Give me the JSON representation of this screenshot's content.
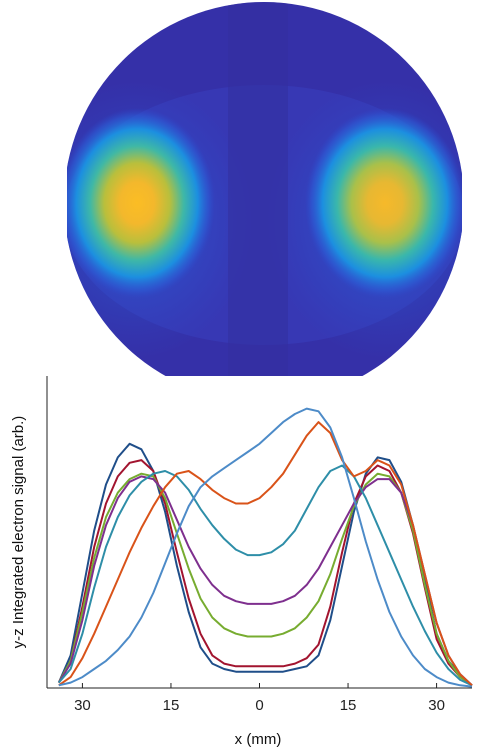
{
  "chart_data": [
    {
      "type": "heatmap",
      "shape": "circular",
      "colormap": [
        "#3a2fb0",
        "#2a64e0",
        "#1aa6d8",
        "#5cc08a",
        "#c4be3c",
        "#fbbd24"
      ],
      "hotspots": [
        {
          "side": "left",
          "peak_level": 1.0
        },
        {
          "side": "right",
          "peak_level": 0.95
        }
      ]
    },
    {
      "type": "line",
      "title": "",
      "xlabel": "x (mm)",
      "ylabel": "y-z Integrated electron signal (arb.)",
      "xlim": [
        -36,
        36
      ],
      "ylim": [
        0,
        1.15
      ],
      "x_ticks": [
        -30,
        -15,
        0,
        15,
        30
      ],
      "x_tick_labels": [
        "30",
        "15",
        "0",
        "15",
        "30"
      ],
      "grid": false,
      "series": [
        {
          "color": "#1f4e89",
          "x": [
            -34,
            -32,
            -30,
            -28,
            -26,
            -24,
            -22,
            -20,
            -18,
            -16,
            -14,
            -12,
            -10,
            -8,
            -6,
            -4,
            -2,
            0,
            2,
            4,
            6,
            8,
            10,
            12,
            14,
            16,
            18,
            20,
            22,
            24,
            26,
            28,
            30,
            32,
            34,
            36
          ],
          "y": [
            0.02,
            0.12,
            0.35,
            0.58,
            0.75,
            0.85,
            0.9,
            0.88,
            0.8,
            0.65,
            0.45,
            0.28,
            0.15,
            0.09,
            0.07,
            0.06,
            0.06,
            0.06,
            0.06,
            0.06,
            0.07,
            0.08,
            0.12,
            0.25,
            0.45,
            0.65,
            0.79,
            0.85,
            0.84,
            0.76,
            0.6,
            0.4,
            0.2,
            0.1,
            0.05,
            0.01
          ]
        },
        {
          "color": "#a2142f",
          "x": [
            -34,
            -32,
            -30,
            -28,
            -26,
            -24,
            -22,
            -20,
            -18,
            -16,
            -14,
            -12,
            -10,
            -8,
            -6,
            -4,
            -2,
            0,
            2,
            4,
            6,
            8,
            10,
            12,
            14,
            16,
            18,
            20,
            22,
            24,
            26,
            28,
            30,
            32,
            34,
            36
          ],
          "y": [
            0.02,
            0.1,
            0.3,
            0.52,
            0.68,
            0.78,
            0.83,
            0.84,
            0.8,
            0.68,
            0.5,
            0.33,
            0.2,
            0.12,
            0.09,
            0.08,
            0.08,
            0.08,
            0.08,
            0.08,
            0.09,
            0.11,
            0.16,
            0.3,
            0.5,
            0.68,
            0.78,
            0.82,
            0.8,
            0.72,
            0.57,
            0.37,
            0.18,
            0.09,
            0.04,
            0.01
          ]
        },
        {
          "color": "#77ac30",
          "x": [
            -34,
            -32,
            -30,
            -28,
            -26,
            -24,
            -22,
            -20,
            -18,
            -16,
            -14,
            -12,
            -10,
            -8,
            -6,
            -4,
            -2,
            0,
            2,
            4,
            6,
            8,
            10,
            12,
            14,
            16,
            18,
            20,
            22,
            24,
            26,
            28,
            30,
            32,
            34,
            36
          ],
          "y": [
            0.02,
            0.1,
            0.28,
            0.48,
            0.63,
            0.72,
            0.77,
            0.79,
            0.78,
            0.7,
            0.57,
            0.44,
            0.33,
            0.26,
            0.22,
            0.2,
            0.19,
            0.19,
            0.19,
            0.2,
            0.22,
            0.26,
            0.32,
            0.42,
            0.55,
            0.67,
            0.75,
            0.79,
            0.78,
            0.72,
            0.58,
            0.38,
            0.2,
            0.1,
            0.04,
            0.01
          ]
        },
        {
          "color": "#7e2f8e",
          "x": [
            -34,
            -32,
            -30,
            -28,
            -26,
            -24,
            -22,
            -20,
            -18,
            -16,
            -14,
            -12,
            -10,
            -8,
            -6,
            -4,
            -2,
            0,
            2,
            4,
            6,
            8,
            10,
            12,
            14,
            16,
            18,
            20,
            22,
            24,
            26,
            28,
            30,
            32,
            34,
            36
          ],
          "y": [
            0.02,
            0.09,
            0.25,
            0.45,
            0.6,
            0.7,
            0.76,
            0.78,
            0.77,
            0.72,
            0.62,
            0.52,
            0.44,
            0.38,
            0.34,
            0.32,
            0.31,
            0.31,
            0.31,
            0.32,
            0.34,
            0.38,
            0.44,
            0.52,
            0.6,
            0.68,
            0.74,
            0.77,
            0.77,
            0.72,
            0.6,
            0.42,
            0.24,
            0.12,
            0.05,
            0.01
          ]
        },
        {
          "color": "#2e8ea8",
          "x": [
            -34,
            -32,
            -30,
            -28,
            -26,
            -24,
            -22,
            -20,
            -18,
            -16,
            -14,
            -12,
            -10,
            -8,
            -6,
            -4,
            -2,
            0,
            2,
            4,
            6,
            8,
            10,
            12,
            14,
            16,
            18,
            20,
            22,
            24,
            26,
            28,
            30,
            32,
            34,
            36
          ],
          "y": [
            0.02,
            0.07,
            0.2,
            0.37,
            0.52,
            0.63,
            0.71,
            0.76,
            0.79,
            0.8,
            0.78,
            0.73,
            0.66,
            0.6,
            0.55,
            0.51,
            0.49,
            0.49,
            0.5,
            0.53,
            0.58,
            0.66,
            0.74,
            0.8,
            0.82,
            0.78,
            0.7,
            0.6,
            0.5,
            0.4,
            0.3,
            0.21,
            0.13,
            0.07,
            0.03,
            0.01
          ]
        },
        {
          "color": "#d95319",
          "x": [
            -34,
            -32,
            -30,
            -28,
            -26,
            -24,
            -22,
            -20,
            -18,
            -16,
            -14,
            -12,
            -10,
            -8,
            -6,
            -4,
            -2,
            0,
            2,
            4,
            6,
            8,
            10,
            12,
            14,
            16,
            18,
            20,
            22,
            24,
            26,
            28,
            30,
            32,
            34,
            36
          ],
          "y": [
            0.01,
            0.04,
            0.11,
            0.2,
            0.3,
            0.4,
            0.5,
            0.59,
            0.67,
            0.74,
            0.79,
            0.8,
            0.77,
            0.73,
            0.7,
            0.68,
            0.68,
            0.7,
            0.74,
            0.79,
            0.86,
            0.93,
            0.98,
            0.94,
            0.84,
            0.78,
            0.8,
            0.84,
            0.82,
            0.75,
            0.6,
            0.42,
            0.24,
            0.12,
            0.05,
            0.01
          ]
        },
        {
          "color": "#4d8bc8",
          "x": [
            -34,
            -32,
            -30,
            -28,
            -26,
            -24,
            -22,
            -20,
            -18,
            -16,
            -14,
            -12,
            -10,
            -8,
            -6,
            -4,
            -2,
            0,
            2,
            4,
            6,
            8,
            10,
            12,
            14,
            16,
            18,
            20,
            22,
            24,
            26,
            28,
            30,
            32,
            34,
            36
          ],
          "y": [
            0.01,
            0.02,
            0.04,
            0.07,
            0.1,
            0.14,
            0.19,
            0.26,
            0.35,
            0.46,
            0.57,
            0.67,
            0.74,
            0.78,
            0.81,
            0.84,
            0.87,
            0.9,
            0.94,
            0.98,
            1.01,
            1.03,
            1.02,
            0.96,
            0.85,
            0.7,
            0.54,
            0.4,
            0.28,
            0.19,
            0.12,
            0.07,
            0.04,
            0.02,
            0.01,
            0.005
          ]
        }
      ]
    }
  ]
}
